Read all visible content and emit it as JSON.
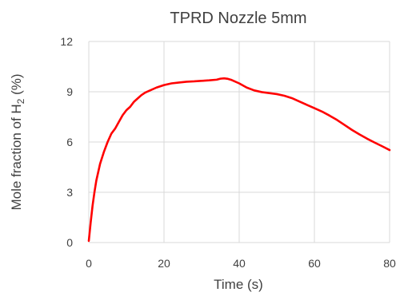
{
  "chart_data": {
    "type": "line",
    "title": "TPRD Nozzle 5mm",
    "xlabel": "Time (s)",
    "ylabel": {
      "prefix": "Mole fraction of H",
      "subscript": "2",
      "suffix": " (%)"
    },
    "xlim": [
      0,
      80
    ],
    "ylim": [
      0,
      12
    ],
    "xticks": [
      "0",
      "20",
      "40",
      "60",
      "80"
    ],
    "yticks": [
      "0",
      "3",
      "6",
      "9",
      "12"
    ],
    "grid": true,
    "legend": "none",
    "series": [
      {
        "color": "#ff0000",
        "x": [
          0,
          0.5,
          1,
          1.5,
          2,
          3,
          4,
          5,
          6,
          7,
          8,
          9,
          10,
          11,
          12,
          13,
          14,
          15,
          16,
          18,
          20,
          22,
          24,
          26,
          28,
          30,
          32,
          34,
          35,
          36,
          37,
          38,
          40,
          42,
          44,
          46,
          48,
          50,
          52,
          54,
          56,
          58,
          60,
          62,
          64,
          66,
          68,
          70,
          72,
          74,
          76,
          78,
          80
        ],
        "y": [
          0.1,
          1.2,
          2.2,
          3.0,
          3.7,
          4.7,
          5.4,
          6.0,
          6.5,
          6.8,
          7.2,
          7.6,
          7.9,
          8.1,
          8.4,
          8.6,
          8.8,
          8.95,
          9.05,
          9.25,
          9.4,
          9.5,
          9.55,
          9.6,
          9.62,
          9.65,
          9.68,
          9.72,
          9.78,
          9.8,
          9.77,
          9.7,
          9.5,
          9.25,
          9.08,
          8.98,
          8.92,
          8.86,
          8.76,
          8.62,
          8.42,
          8.22,
          8.02,
          7.82,
          7.58,
          7.32,
          7.02,
          6.72,
          6.45,
          6.2,
          5.97,
          5.75,
          5.52
        ]
      }
    ]
  }
}
